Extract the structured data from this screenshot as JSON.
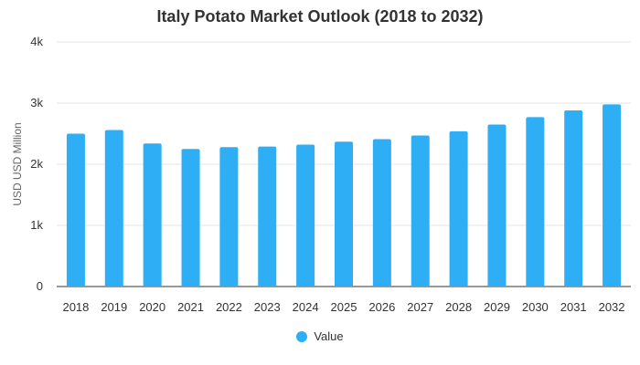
{
  "chart_data": {
    "type": "bar",
    "title": "Italy Potato Market Outlook (2018 to 2032)",
    "xlabel": "",
    "ylabel": "USD USD Million",
    "ylim": [
      0,
      4000
    ],
    "yticks": [
      {
        "value": 0,
        "label": "0"
      },
      {
        "value": 1000,
        "label": "1k"
      },
      {
        "value": 2000,
        "label": "2k"
      },
      {
        "value": 3000,
        "label": "3k"
      },
      {
        "value": 4000,
        "label": "4k"
      }
    ],
    "categories": [
      "2018",
      "2019",
      "2020",
      "2021",
      "2022",
      "2023",
      "2024",
      "2025",
      "2026",
      "2027",
      "2028",
      "2029",
      "2030",
      "2031",
      "2032"
    ],
    "series": [
      {
        "name": "Value",
        "color": "#2eaef5",
        "values": [
          2500,
          2560,
          2340,
          2250,
          2280,
          2290,
          2320,
          2370,
          2410,
          2470,
          2540,
          2650,
          2770,
          2880,
          2980
        ]
      }
    ],
    "grid": true,
    "legend_position": "bottom-center"
  }
}
